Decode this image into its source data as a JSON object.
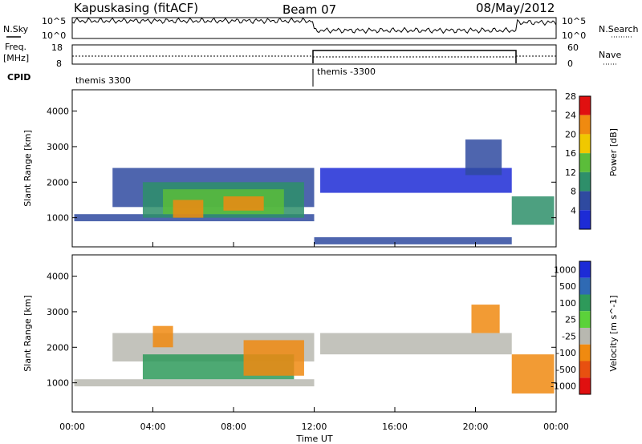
{
  "header": {
    "station": "Kapuskasing (fitACF)",
    "beam": "Beam 07",
    "date": "08/May/2012"
  },
  "top_panels": {
    "nsky_label": "N.Sky",
    "nsky_ticks": [
      "10^5",
      "10^0"
    ],
    "nsearch_label": "N.Search",
    "nsearch_ticks": [
      "10^5",
      "10^0"
    ],
    "freq_label_1": "Freq.",
    "freq_label_2": "[MHz]",
    "freq_ticks": [
      "18",
      "8"
    ],
    "nave_label": "Nave",
    "nave_ticks": [
      "60",
      "0"
    ],
    "cpid_label": "CPID",
    "cpid_segments": [
      {
        "label": "themis 3300",
        "start_hour": 0,
        "end_hour": 12
      },
      {
        "label": "themis -3300",
        "start_hour": 12,
        "end_hour": 24
      }
    ]
  },
  "x_axis": {
    "label": "Time UT",
    "ticks": [
      "00:00",
      "04:00",
      "08:00",
      "12:00",
      "16:00",
      "20:00",
      "00:00"
    ],
    "range_hours": [
      0,
      24
    ]
  },
  "chart_data": [
    {
      "type": "heatmap",
      "name": "power",
      "ylabel": "Slant Range [km]",
      "y_ticks": [
        "1000",
        "2000",
        "3000",
        "4000"
      ],
      "ylim": [
        180,
        4600
      ],
      "xlim_hours": [
        0,
        24
      ],
      "colorbar_label": "Power [dB]",
      "colorbar_ticks": [
        "4",
        "8",
        "12",
        "16",
        "20",
        "24",
        "28"
      ],
      "colorbar_colors": [
        "#1d2bd6",
        "#2f4aa0",
        "#2e8f6a",
        "#5bbd3a",
        "#f0c800",
        "#f08a10",
        "#e01010"
      ],
      "regions": [
        {
          "t0": 0.1,
          "t1": 12.0,
          "r0": 900,
          "r1": 1100,
          "level": 8
        },
        {
          "t0": 2.0,
          "t1": 12.0,
          "r0": 1300,
          "r1": 2400,
          "level": 8
        },
        {
          "t0": 3.5,
          "t1": 11.5,
          "r0": 1000,
          "r1": 2000,
          "level": 12
        },
        {
          "t0": 4.5,
          "t1": 10.5,
          "r0": 1100,
          "r1": 1800,
          "level": 16
        },
        {
          "t0": 5.0,
          "t1": 6.5,
          "r0": 1000,
          "r1": 1500,
          "level": 24
        },
        {
          "t0": 7.5,
          "t1": 9.5,
          "r0": 1200,
          "r1": 1600,
          "level": 24
        },
        {
          "t0": 12.3,
          "t1": 21.8,
          "r0": 1700,
          "r1": 2400,
          "level": 4
        },
        {
          "t0": 19.5,
          "t1": 21.3,
          "r0": 2200,
          "r1": 3200,
          "level": 8
        },
        {
          "t0": 21.8,
          "t1": 23.9,
          "r0": 800,
          "r1": 1600,
          "level": 12
        },
        {
          "t0": 12.0,
          "t1": 21.8,
          "r0": 250,
          "r1": 450,
          "level": 8
        }
      ]
    },
    {
      "type": "heatmap",
      "name": "velocity",
      "ylabel": "Slant Range [km]",
      "y_ticks": [
        "1000",
        "2000",
        "3000",
        "4000"
      ],
      "ylim": [
        180,
        4600
      ],
      "xlim_hours": [
        0,
        24
      ],
      "colorbar_label": "Velocity [m s^-1]",
      "colorbar_ticks": [
        "1000",
        "500",
        "100",
        "25",
        "-25",
        "-100",
        "-500",
        "-1000"
      ],
      "colorbar_colors": [
        "#1d2bd6",
        "#2f6ab4",
        "#2e9a5a",
        "#5bd23a",
        "#b8b8b0",
        "#f08a10",
        "#e85010",
        "#e01010"
      ],
      "regions": [
        {
          "t0": 0.1,
          "t1": 12.0,
          "r0": 900,
          "r1": 1100,
          "level": "-25"
        },
        {
          "t0": 2.0,
          "t1": 12.0,
          "r0": 1600,
          "r1": 2400,
          "level": "-25"
        },
        {
          "t0": 3.5,
          "t1": 11.0,
          "r0": 1100,
          "r1": 1800,
          "level": "100"
        },
        {
          "t0": 4.0,
          "t1": 5.0,
          "r0": 2000,
          "r1": 2600,
          "level": "-100"
        },
        {
          "t0": 8.5,
          "t1": 11.5,
          "r0": 1200,
          "r1": 2200,
          "level": "-100"
        },
        {
          "t0": 12.3,
          "t1": 21.8,
          "r0": 1800,
          "r1": 2400,
          "level": "-25"
        },
        {
          "t0": 19.8,
          "t1": 21.2,
          "r0": 2400,
          "r1": 3200,
          "level": "-100"
        },
        {
          "t0": 21.8,
          "t1": 23.9,
          "r0": 700,
          "r1": 1800,
          "level": "-100"
        }
      ]
    }
  ]
}
